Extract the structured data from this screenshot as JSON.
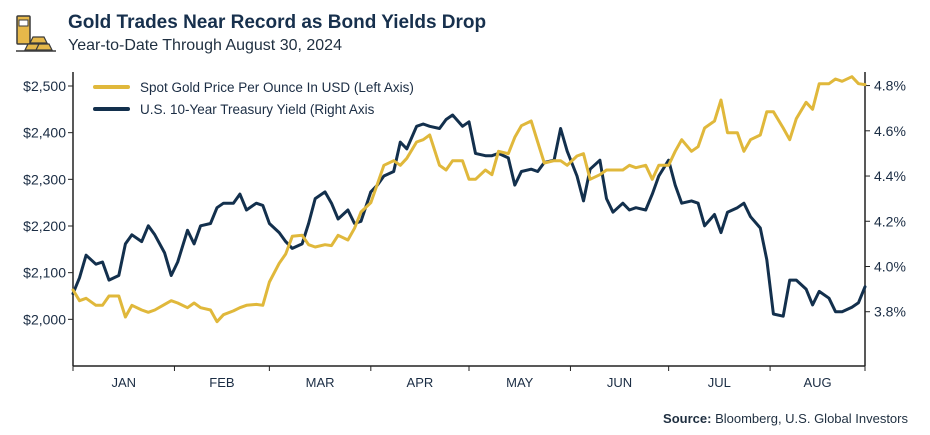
{
  "header": {
    "title": "Gold Trades Near Record as Bond Yields Drop",
    "subtitle": "Year-to-Date Through August 30, 2024"
  },
  "source": {
    "label": "Source:",
    "text": "Bloomberg, U.S. Global Investors"
  },
  "colors": {
    "gold": "#e0b83b",
    "navy": "#13304d",
    "axis": "#222222",
    "logo_gold": "#e6b84a",
    "logo_dark": "#3a3a3a"
  },
  "chart_data": {
    "type": "line",
    "title": "Gold Trades Near Record as Bond Yields Drop",
    "subtitle": "Year-to-Date Through August 30, 2024",
    "x_axis": {
      "ticks": [
        "JAN",
        "FEB",
        "MAR",
        "APR",
        "MAY",
        "JUN",
        "JUL",
        "AUG"
      ],
      "range": [
        "2024-01-01",
        "2024-08-30"
      ]
    },
    "y_left": {
      "ticks": [
        "$2,000",
        "$2,100",
        "$2,200",
        "$2,300",
        "$2,400",
        "$2,500"
      ],
      "range": [
        1900,
        2530
      ]
    },
    "y_right": {
      "ticks": [
        "3.8%",
        "4.0%",
        "4.2%",
        "4.4%",
        "4.6%",
        "4.8%"
      ],
      "range": [
        3.56,
        4.86
      ]
    },
    "grid": false,
    "legend_position": "top-left",
    "legend": [
      "Spot Gold Price Per Ounce In USD (Left Axis)",
      "U.S. 10-Year Treasury Yield (Right Axis"
    ],
    "series": [
      {
        "name": "Spot Gold Price Per Ounce In USD (Left Axis)",
        "axis": "left",
        "color": "#e0b83b",
        "points": [
          [
            "2024-01-01",
            2063
          ],
          [
            "2024-01-03",
            2040
          ],
          [
            "2024-01-05",
            2045
          ],
          [
            "2024-01-08",
            2030
          ],
          [
            "2024-01-10",
            2030
          ],
          [
            "2024-01-12",
            2050
          ],
          [
            "2024-01-15",
            2050
          ],
          [
            "2024-01-17",
            2005
          ],
          [
            "2024-01-19",
            2030
          ],
          [
            "2024-01-22",
            2020
          ],
          [
            "2024-01-24",
            2015
          ],
          [
            "2024-01-26",
            2020
          ],
          [
            "2024-01-29",
            2032
          ],
          [
            "2024-01-31",
            2040
          ],
          [
            "2024-02-02",
            2035
          ],
          [
            "2024-02-05",
            2025
          ],
          [
            "2024-02-07",
            2035
          ],
          [
            "2024-02-09",
            2025
          ],
          [
            "2024-02-12",
            2020
          ],
          [
            "2024-02-14",
            1995
          ],
          [
            "2024-02-16",
            2010
          ],
          [
            "2024-02-19",
            2018
          ],
          [
            "2024-02-21",
            2025
          ],
          [
            "2024-02-23",
            2030
          ],
          [
            "2024-02-26",
            2032
          ],
          [
            "2024-02-28",
            2030
          ],
          [
            "2024-03-01",
            2080
          ],
          [
            "2024-03-04",
            2120
          ],
          [
            "2024-03-06",
            2140
          ],
          [
            "2024-03-08",
            2178
          ],
          [
            "2024-03-11",
            2180
          ],
          [
            "2024-03-13",
            2160
          ],
          [
            "2024-03-15",
            2155
          ],
          [
            "2024-03-18",
            2160
          ],
          [
            "2024-03-20",
            2158
          ],
          [
            "2024-03-22",
            2180
          ],
          [
            "2024-03-25",
            2170
          ],
          [
            "2024-03-27",
            2195
          ],
          [
            "2024-03-29",
            2230
          ],
          [
            "2024-04-01",
            2250
          ],
          [
            "2024-04-03",
            2290
          ],
          [
            "2024-04-05",
            2330
          ],
          [
            "2024-04-08",
            2340
          ],
          [
            "2024-04-10",
            2330
          ],
          [
            "2024-04-12",
            2345
          ],
          [
            "2024-04-15",
            2380
          ],
          [
            "2024-04-17",
            2385
          ],
          [
            "2024-04-19",
            2395
          ],
          [
            "2024-04-22",
            2330
          ],
          [
            "2024-04-24",
            2320
          ],
          [
            "2024-04-26",
            2340
          ],
          [
            "2024-04-29",
            2340
          ],
          [
            "2024-05-01",
            2300
          ],
          [
            "2024-05-03",
            2300
          ],
          [
            "2024-05-06",
            2320
          ],
          [
            "2024-05-08",
            2310
          ],
          [
            "2024-05-10",
            2360
          ],
          [
            "2024-05-13",
            2355
          ],
          [
            "2024-05-15",
            2390
          ],
          [
            "2024-05-17",
            2415
          ],
          [
            "2024-05-20",
            2425
          ],
          [
            "2024-05-22",
            2380
          ],
          [
            "2024-05-24",
            2335
          ],
          [
            "2024-05-27",
            2340
          ],
          [
            "2024-05-29",
            2340
          ],
          [
            "2024-05-31",
            2330
          ],
          [
            "2024-06-03",
            2350
          ],
          [
            "2024-06-05",
            2355
          ],
          [
            "2024-06-07",
            2300
          ],
          [
            "2024-06-10",
            2310
          ],
          [
            "2024-06-12",
            2320
          ],
          [
            "2024-06-14",
            2320
          ],
          [
            "2024-06-17",
            2320
          ],
          [
            "2024-06-19",
            2330
          ],
          [
            "2024-06-21",
            2325
          ],
          [
            "2024-06-24",
            2330
          ],
          [
            "2024-06-26",
            2300
          ],
          [
            "2024-06-28",
            2330
          ],
          [
            "2024-07-01",
            2330
          ],
          [
            "2024-07-03",
            2360
          ],
          [
            "2024-07-05",
            2385
          ],
          [
            "2024-07-08",
            2360
          ],
          [
            "2024-07-10",
            2370
          ],
          [
            "2024-07-12",
            2410
          ],
          [
            "2024-07-15",
            2425
          ],
          [
            "2024-07-17",
            2470
          ],
          [
            "2024-07-19",
            2400
          ],
          [
            "2024-07-22",
            2400
          ],
          [
            "2024-07-24",
            2360
          ],
          [
            "2024-07-26",
            2385
          ],
          [
            "2024-07-29",
            2395
          ],
          [
            "2024-07-31",
            2445
          ],
          [
            "2024-08-02",
            2445
          ],
          [
            "2024-08-05",
            2410
          ],
          [
            "2024-08-07",
            2385
          ],
          [
            "2024-08-09",
            2430
          ],
          [
            "2024-08-12",
            2465
          ],
          [
            "2024-08-14",
            2450
          ],
          [
            "2024-08-16",
            2505
          ],
          [
            "2024-08-19",
            2505
          ],
          [
            "2024-08-21",
            2515
          ],
          [
            "2024-08-23",
            2510
          ],
          [
            "2024-08-26",
            2520
          ],
          [
            "2024-08-28",
            2505
          ],
          [
            "2024-08-30",
            2503
          ]
        ]
      },
      {
        "name": "U.S. 10-Year Treasury Yield (Right Axis",
        "axis": "right",
        "color": "#13304d",
        "points": [
          [
            "2024-01-01",
            3.88
          ],
          [
            "2024-01-03",
            3.95
          ],
          [
            "2024-01-05",
            4.05
          ],
          [
            "2024-01-08",
            4.01
          ],
          [
            "2024-01-10",
            4.02
          ],
          [
            "2024-01-12",
            3.94
          ],
          [
            "2024-01-15",
            3.96
          ],
          [
            "2024-01-17",
            4.1
          ],
          [
            "2024-01-19",
            4.14
          ],
          [
            "2024-01-22",
            4.11
          ],
          [
            "2024-01-24",
            4.18
          ],
          [
            "2024-01-26",
            4.14
          ],
          [
            "2024-01-29",
            4.06
          ],
          [
            "2024-01-31",
            3.96
          ],
          [
            "2024-02-02",
            4.02
          ],
          [
            "2024-02-05",
            4.16
          ],
          [
            "2024-02-07",
            4.1
          ],
          [
            "2024-02-09",
            4.18
          ],
          [
            "2024-02-12",
            4.19
          ],
          [
            "2024-02-14",
            4.26
          ],
          [
            "2024-02-16",
            4.28
          ],
          [
            "2024-02-19",
            4.28
          ],
          [
            "2024-02-21",
            4.32
          ],
          [
            "2024-02-23",
            4.25
          ],
          [
            "2024-02-26",
            4.28
          ],
          [
            "2024-02-28",
            4.27
          ],
          [
            "2024-03-01",
            4.19
          ],
          [
            "2024-03-04",
            4.15
          ],
          [
            "2024-03-06",
            4.11
          ],
          [
            "2024-03-08",
            4.08
          ],
          [
            "2024-03-11",
            4.1
          ],
          [
            "2024-03-13",
            4.19
          ],
          [
            "2024-03-15",
            4.3
          ],
          [
            "2024-03-18",
            4.33
          ],
          [
            "2024-03-20",
            4.28
          ],
          [
            "2024-03-22",
            4.21
          ],
          [
            "2024-03-25",
            4.25
          ],
          [
            "2024-03-27",
            4.19
          ],
          [
            "2024-03-29",
            4.2
          ],
          [
            "2024-04-01",
            4.33
          ],
          [
            "2024-04-03",
            4.36
          ],
          [
            "2024-04-05",
            4.4
          ],
          [
            "2024-04-08",
            4.42
          ],
          [
            "2024-04-10",
            4.55
          ],
          [
            "2024-04-12",
            4.52
          ],
          [
            "2024-04-15",
            4.62
          ],
          [
            "2024-04-17",
            4.63
          ],
          [
            "2024-04-19",
            4.62
          ],
          [
            "2024-04-22",
            4.61
          ],
          [
            "2024-04-24",
            4.65
          ],
          [
            "2024-04-26",
            4.67
          ],
          [
            "2024-04-29",
            4.62
          ],
          [
            "2024-05-01",
            4.64
          ],
          [
            "2024-05-03",
            4.5
          ],
          [
            "2024-05-06",
            4.49
          ],
          [
            "2024-05-08",
            4.49
          ],
          [
            "2024-05-10",
            4.5
          ],
          [
            "2024-05-13",
            4.48
          ],
          [
            "2024-05-15",
            4.36
          ],
          [
            "2024-05-17",
            4.42
          ],
          [
            "2024-05-20",
            4.43
          ],
          [
            "2024-05-22",
            4.42
          ],
          [
            "2024-05-24",
            4.46
          ],
          [
            "2024-05-27",
            4.47
          ],
          [
            "2024-05-29",
            4.61
          ],
          [
            "2024-05-31",
            4.51
          ],
          [
            "2024-06-03",
            4.4
          ],
          [
            "2024-06-05",
            4.29
          ],
          [
            "2024-06-07",
            4.43
          ],
          [
            "2024-06-10",
            4.47
          ],
          [
            "2024-06-12",
            4.3
          ],
          [
            "2024-06-14",
            4.24
          ],
          [
            "2024-06-17",
            4.28
          ],
          [
            "2024-06-19",
            4.25
          ],
          [
            "2024-06-21",
            4.26
          ],
          [
            "2024-06-24",
            4.25
          ],
          [
            "2024-06-26",
            4.32
          ],
          [
            "2024-06-28",
            4.4
          ],
          [
            "2024-07-01",
            4.47
          ],
          [
            "2024-07-03",
            4.36
          ],
          [
            "2024-07-05",
            4.28
          ],
          [
            "2024-07-08",
            4.29
          ],
          [
            "2024-07-10",
            4.28
          ],
          [
            "2024-07-12",
            4.18
          ],
          [
            "2024-07-15",
            4.23
          ],
          [
            "2024-07-17",
            4.15
          ],
          [
            "2024-07-19",
            4.24
          ],
          [
            "2024-07-22",
            4.26
          ],
          [
            "2024-07-24",
            4.28
          ],
          [
            "2024-07-26",
            4.22
          ],
          [
            "2024-07-29",
            4.17
          ],
          [
            "2024-07-31",
            4.03
          ],
          [
            "2024-08-02",
            3.79
          ],
          [
            "2024-08-05",
            3.78
          ],
          [
            "2024-08-07",
            3.94
          ],
          [
            "2024-08-09",
            3.94
          ],
          [
            "2024-08-12",
            3.9
          ],
          [
            "2024-08-14",
            3.83
          ],
          [
            "2024-08-16",
            3.89
          ],
          [
            "2024-08-19",
            3.86
          ],
          [
            "2024-08-21",
            3.8
          ],
          [
            "2024-08-23",
            3.8
          ],
          [
            "2024-08-26",
            3.82
          ],
          [
            "2024-08-28",
            3.84
          ],
          [
            "2024-08-30",
            3.91
          ]
        ]
      }
    ]
  }
}
